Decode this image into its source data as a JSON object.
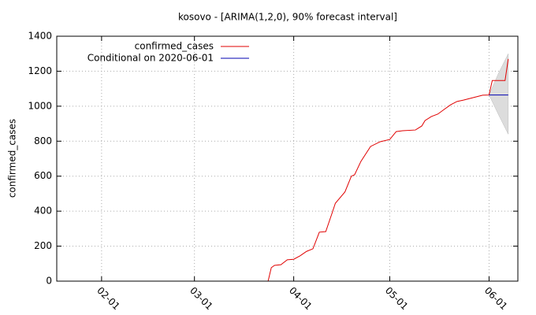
{
  "chart_data": {
    "type": "line",
    "title": "kosovo -  [ARIMA(1,2,0), 90% forecast interval]",
    "y_label": "confirmed_cases",
    "xlim": [
      "01-18",
      "06-10"
    ],
    "xticks": [
      "02-01",
      "03-01",
      "04-01",
      "05-01",
      "06-01"
    ],
    "ylim": [
      0,
      1400
    ],
    "yticks": [
      0,
      200,
      400,
      600,
      800,
      1000,
      1200,
      1400
    ],
    "grid": true,
    "legend": "top-left",
    "series": [
      {
        "name": "confirmed_cases",
        "color": "#e00000",
        "x": [
          "03-24",
          "03-25",
          "03-26",
          "03-28",
          "03-30",
          "04-01",
          "04-03",
          "04-05",
          "04-07",
          "04-09",
          "04-11",
          "04-13",
          "04-14",
          "04-17",
          "04-19",
          "04-20",
          "04-22",
          "04-25",
          "04-28",
          "05-01",
          "05-03",
          "05-05",
          "05-09",
          "05-11",
          "05-12",
          "05-14",
          "05-16",
          "05-18",
          "05-20",
          "05-22",
          "05-24",
          "05-27",
          "05-30",
          "06-01",
          "06-02",
          "06-06",
          "06-07"
        ],
        "values": [
          0,
          77,
          90,
          94,
          122,
          125,
          145,
          170,
          185,
          280,
          283,
          390,
          445,
          510,
          600,
          608,
          685,
          770,
          797,
          810,
          855,
          860,
          864,
          887,
          918,
          941,
          955,
          982,
          1008,
          1027,
          1035,
          1049,
          1063,
          1064,
          1147,
          1147,
          1270
        ]
      },
      {
        "name": "Conditional on 2020-06-01",
        "color": "#0000b0",
        "x": [
          "06-01",
          "06-07"
        ],
        "values": [
          1064,
          1064
        ]
      }
    ],
    "band": {
      "color": "#dcdcdc",
      "x": [
        "06-01",
        "06-04",
        "06-07"
      ],
      "lower": [
        1064,
        950,
        840
      ],
      "upper": [
        1064,
        1190,
        1300
      ]
    }
  }
}
